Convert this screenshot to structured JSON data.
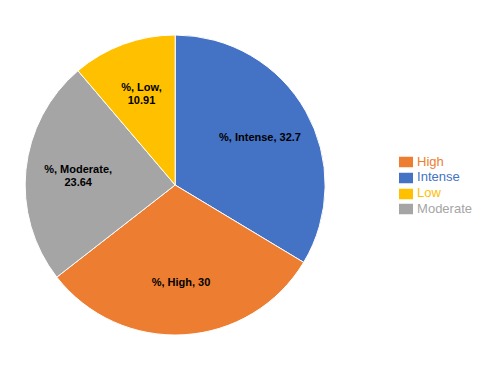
{
  "chart_data": {
    "type": "pie",
    "categories": [
      "Intense",
      "High",
      "Moderate",
      "Low"
    ],
    "values": [
      32.7,
      30.0,
      23.64,
      10.91
    ],
    "value_labels": [
      "%, Intense, 32.7",
      "%, High, 30",
      "%, Moderate,\n23.64",
      "%, Low,\n10.91"
    ],
    "colors": [
      "#4472C4",
      "#ED7D31",
      "#A5A5A5",
      "#FFC000"
    ],
    "legend": "right"
  }
}
